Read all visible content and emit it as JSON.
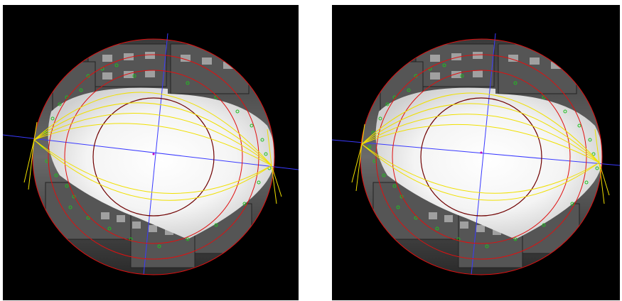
{
  "figure": {
    "panels": [
      {
        "id": "left",
        "label": ""
      },
      {
        "id": "right",
        "label": ""
      }
    ]
  },
  "colors": {
    "background": "#000000",
    "page": "#ffffff",
    "outer_ring": "#e01010",
    "inner_ring": "#700000",
    "yellow_curves": "#f0e000",
    "axis_lines": "#3a3aff",
    "feature_points": "#20c020",
    "principal_point": "#c000c0"
  },
  "icons": [
    "fisheye-image",
    "calibration-overlay"
  ]
}
